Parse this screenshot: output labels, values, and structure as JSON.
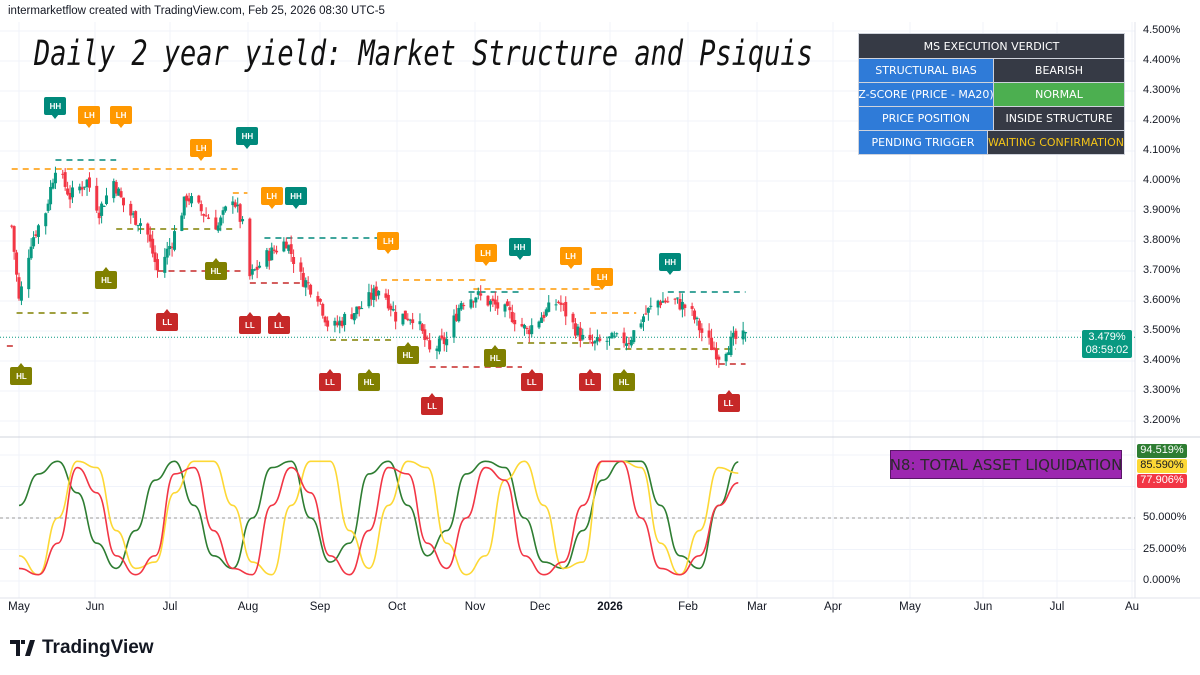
{
  "header": {
    "attribution": "intermarketflow created with TradingView.com, Feb 25, 2026 08:30 UTC-5",
    "title": "Daily 2 year yield: Market Structure and Psiquis"
  },
  "verdict_table": {
    "title": "MS EXECUTION VERDICT",
    "rows": [
      {
        "label": "STRUCTURAL BIAS",
        "value": "BEARISH",
        "style": "dark"
      },
      {
        "label": "Z-SCORE (PRICE - MA20)",
        "value": "NORMAL",
        "style": "green"
      },
      {
        "label": "PRICE POSITION",
        "value": "INSIDE STRUCTURE",
        "style": "dark"
      },
      {
        "label": "PENDING TRIGGER",
        "value": "WAITING CONFIRMATION",
        "style": "yellow"
      }
    ]
  },
  "price_tag": {
    "value": "3.479%",
    "countdown": "08:59:02",
    "color": "#089981"
  },
  "oscillator_tags": [
    {
      "value": "94.519%",
      "color": "#2e7d32",
      "text": "#ffffff"
    },
    {
      "value": "85.590%",
      "color": "#fdd835",
      "text": "#131722"
    },
    {
      "value": "77.906%",
      "color": "#f23645",
      "text": "#ffffff"
    }
  ],
  "n8_label": "N8: TOTAL ASSET LIQUIDATION",
  "footer": {
    "brand": "TradingView"
  },
  "colors": {
    "up": "#089981",
    "down": "#f23645",
    "hh": "#00897b",
    "lh": "#ff9800",
    "hl": "#808000",
    "ll": "#c62828"
  },
  "chart_data": [
    {
      "type": "candlestick",
      "pane": "price",
      "y_ticks": [
        "4.500%",
        "4.400%",
        "4.300%",
        "4.200%",
        "4.100%",
        "4.000%",
        "3.900%",
        "3.800%",
        "3.700%",
        "3.600%",
        "3.500%",
        "3.400%",
        "3.300%",
        "3.200%"
      ],
      "ylim": [
        3.15,
        4.5
      ],
      "x_ticks": [
        "May",
        "Jun",
        "Jul",
        "Aug",
        "Sep",
        "Oct",
        "Nov",
        "Dec",
        "2026",
        "Feb",
        "Mar",
        "Apr",
        "May",
        "Jun",
        "Jul",
        "Au"
      ],
      "grid": true,
      "current_price": 3.479,
      "closes": [
        [
          "2025-04-28",
          3.85
        ],
        [
          "2025-05-01",
          3.6
        ],
        [
          "2025-05-06",
          3.8
        ],
        [
          "2025-05-12",
          3.9
        ],
        [
          "2025-05-16",
          4.05
        ],
        [
          "2025-05-22",
          3.95
        ],
        [
          "2025-05-29",
          4.0
        ],
        [
          "2025-06-03",
          3.9
        ],
        [
          "2025-06-09",
          4.0
        ],
        [
          "2025-06-14",
          3.9
        ],
        [
          "2025-06-22",
          3.85
        ],
        [
          "2025-06-27",
          3.7
        ],
        [
          "2025-07-03",
          3.8
        ],
        [
          "2025-07-09",
          3.95
        ],
        [
          "2025-07-15",
          3.9
        ],
        [
          "2025-07-22",
          3.85
        ],
        [
          "2025-07-28",
          3.95
        ],
        [
          "2025-08-01",
          3.85
        ],
        [
          "2025-08-04",
          3.68
        ],
        [
          "2025-08-11",
          3.75
        ],
        [
          "2025-08-19",
          3.8
        ],
        [
          "2025-08-25",
          3.68
        ],
        [
          "2025-09-01",
          3.62
        ],
        [
          "2025-09-06",
          3.5
        ],
        [
          "2025-09-13",
          3.55
        ],
        [
          "2025-09-19",
          3.58
        ],
        [
          "2025-09-27",
          3.65
        ],
        [
          "2025-10-03",
          3.55
        ],
        [
          "2025-10-11",
          3.55
        ],
        [
          "2025-10-17",
          3.43
        ],
        [
          "2025-10-24",
          3.47
        ],
        [
          "2025-10-30",
          3.6
        ],
        [
          "2025-11-05",
          3.62
        ],
        [
          "2025-11-14",
          3.58
        ],
        [
          "2025-11-20",
          3.55
        ],
        [
          "2025-11-26",
          3.5
        ],
        [
          "2025-12-02",
          3.55
        ],
        [
          "2025-12-09",
          3.6
        ],
        [
          "2025-12-15",
          3.52
        ],
        [
          "2025-12-21",
          3.45
        ],
        [
          "2025-12-30",
          3.47
        ],
        [
          "2026-01-07",
          3.47
        ],
        [
          "2026-01-13",
          3.55
        ],
        [
          "2026-01-19",
          3.6
        ],
        [
          "2026-01-26",
          3.6
        ],
        [
          "2026-02-01",
          3.57
        ],
        [
          "2026-02-07",
          3.48
        ],
        [
          "2026-02-13",
          3.42
        ],
        [
          "2026-02-19",
          3.47
        ],
        [
          "2026-02-24",
          3.479
        ]
      ],
      "structure_labels": [
        {
          "text": "HH",
          "date": "2025-05-16",
          "price": 4.25
        },
        {
          "text": "LH",
          "date": "2025-05-30",
          "price": 4.22
        },
        {
          "text": "LH",
          "date": "2025-06-12",
          "price": 4.22
        },
        {
          "text": "LH",
          "date": "2025-07-15",
          "price": 4.11
        },
        {
          "text": "HH",
          "date": "2025-08-03",
          "price": 4.15
        },
        {
          "text": "LH",
          "date": "2025-08-13",
          "price": 3.95
        },
        {
          "text": "HH",
          "date": "2025-08-23",
          "price": 3.95
        },
        {
          "text": "LH",
          "date": "2025-09-30",
          "price": 3.8
        },
        {
          "text": "LH",
          "date": "2025-11-09",
          "price": 3.76
        },
        {
          "text": "HH",
          "date": "2025-11-23",
          "price": 3.78
        },
        {
          "text": "LH",
          "date": "2025-12-14",
          "price": 3.75
        },
        {
          "text": "LH",
          "date": "2025-12-27",
          "price": 3.68
        },
        {
          "text": "HH",
          "date": "2026-01-24",
          "price": 3.73
        },
        {
          "text": "HL",
          "date": "2025-06-06",
          "price": 3.67
        },
        {
          "text": "HL",
          "date": "2025-07-21",
          "price": 3.7
        },
        {
          "text": "HL",
          "date": "2025-05-02",
          "price": 3.35
        },
        {
          "text": "HL",
          "date": "2025-10-08",
          "price": 3.42
        },
        {
          "text": "HL",
          "date": "2025-09-22",
          "price": 3.33
        },
        {
          "text": "HL",
          "date": "2025-11-13",
          "price": 3.41
        },
        {
          "text": "HL",
          "date": "2026-01-05",
          "price": 3.33
        },
        {
          "text": "LL",
          "date": "2025-07-01",
          "price": 3.53
        },
        {
          "text": "LL",
          "date": "2025-08-04",
          "price": 3.52
        },
        {
          "text": "LL",
          "date": "2025-08-16",
          "price": 3.52
        },
        {
          "text": "LL",
          "date": "2025-09-06",
          "price": 3.33
        },
        {
          "text": "LL",
          "date": "2025-10-18",
          "price": 3.25
        },
        {
          "text": "LL",
          "date": "2025-11-28",
          "price": 3.33
        },
        {
          "text": "LL",
          "date": "2025-12-22",
          "price": 3.33
        },
        {
          "text": "LL",
          "date": "2026-02-17",
          "price": 3.26
        }
      ],
      "structure_levels": [
        {
          "kind": "lh",
          "price": 4.04,
          "from": "2025-04-28",
          "to": "2025-07-31"
        },
        {
          "kind": "hh",
          "price": 4.07,
          "from": "2025-05-16",
          "to": "2025-06-10"
        },
        {
          "kind": "lh",
          "price": 3.96,
          "from": "2025-07-28",
          "to": "2025-08-03"
        },
        {
          "kind": "hl",
          "price": 3.84,
          "from": "2025-06-10",
          "to": "2025-07-28"
        },
        {
          "kind": "hl",
          "price": 3.56,
          "from": "2025-04-30",
          "to": "2025-05-31"
        },
        {
          "kind": "ll",
          "price": 3.7,
          "from": "2025-06-27",
          "to": "2025-08-02"
        },
        {
          "kind": "hh",
          "price": 3.81,
          "from": "2025-08-10",
          "to": "2025-09-30"
        },
        {
          "kind": "ll",
          "price": 3.66,
          "from": "2025-08-04",
          "to": "2025-08-25"
        },
        {
          "kind": "lh",
          "price": 3.67,
          "from": "2025-09-27",
          "to": "2025-11-09"
        },
        {
          "kind": "hl",
          "price": 3.47,
          "from": "2025-09-06",
          "to": "2025-10-03"
        },
        {
          "kind": "ll",
          "price": 3.38,
          "from": "2025-10-17",
          "to": "2025-11-24"
        },
        {
          "kind": "hh",
          "price": 3.63,
          "from": "2025-11-02",
          "to": "2025-11-24"
        },
        {
          "kind": "lh",
          "price": 3.64,
          "from": "2025-11-04",
          "to": "2025-12-27"
        },
        {
          "kind": "hl",
          "price": 3.46,
          "from": "2025-11-22",
          "to": "2025-12-22"
        },
        {
          "kind": "lh",
          "price": 3.56,
          "from": "2025-12-22",
          "to": "2026-01-10"
        },
        {
          "kind": "hl",
          "price": 3.44,
          "from": "2026-01-01",
          "to": "2026-02-20"
        },
        {
          "kind": "hh",
          "price": 3.63,
          "from": "2026-01-23",
          "to": "2026-02-24"
        },
        {
          "kind": "ll",
          "price": 3.39,
          "from": "2026-02-13",
          "to": "2026-02-24"
        },
        {
          "kind": "ll",
          "price": 3.45,
          "from": "2025-04-26",
          "to": "2025-04-29"
        }
      ]
    },
    {
      "type": "line",
      "pane": "oscillator",
      "y_ticks": [
        "50.000%",
        "25.000%",
        "0.000%"
      ],
      "ylim": [
        0,
        100
      ],
      "start": "2025-05-01",
      "step_days": 8,
      "reference_line": 50,
      "series": [
        {
          "color": "#2e7d32",
          "values": [
            60,
            85,
            95,
            70,
            30,
            10,
            40,
            80,
            95,
            60,
            20,
            10,
            50,
            90,
            95,
            50,
            15,
            30,
            85,
            95,
            60,
            20,
            40,
            85,
            95,
            90,
            50,
            15,
            10,
            40,
            80,
            95,
            95,
            60,
            20,
            10,
            60,
            94.519
          ]
        },
        {
          "color": "#fdd835",
          "values": [
            20,
            5,
            50,
            95,
            90,
            40,
            10,
            15,
            70,
            95,
            95,
            60,
            15,
            5,
            60,
            95,
            95,
            40,
            10,
            60,
            95,
            90,
            30,
            5,
            20,
            80,
            95,
            60,
            10,
            15,
            95,
            95,
            90,
            30,
            5,
            40,
            90,
            85.59
          ]
        },
        {
          "color": "#f23645",
          "values": [
            10,
            5,
            30,
            90,
            70,
            20,
            5,
            20,
            85,
            90,
            40,
            10,
            5,
            60,
            90,
            70,
            20,
            5,
            40,
            90,
            85,
            30,
            10,
            50,
            90,
            80,
            20,
            5,
            15,
            60,
            95,
            95,
            50,
            10,
            5,
            20,
            60,
            77.906
          ]
        }
      ]
    }
  ]
}
